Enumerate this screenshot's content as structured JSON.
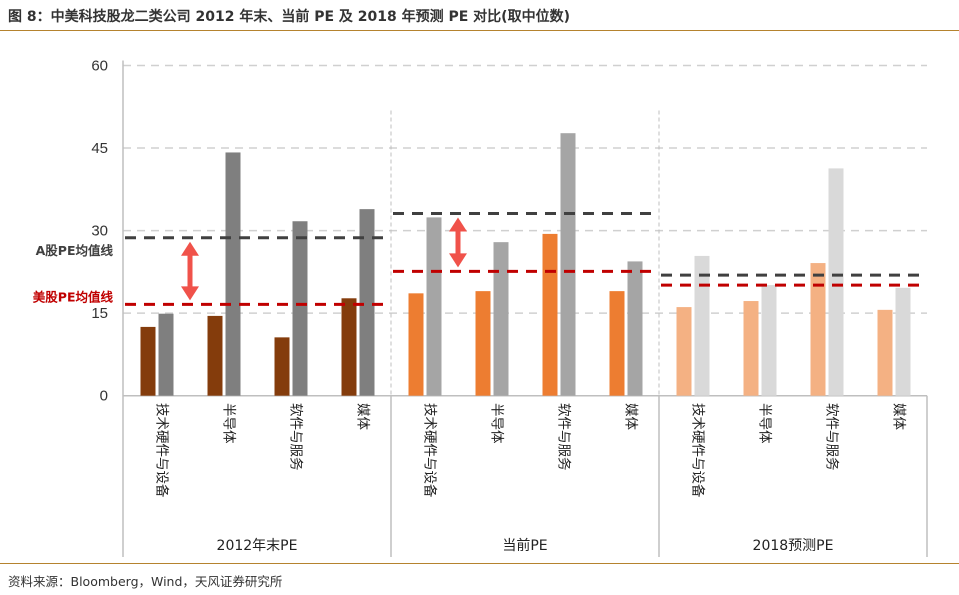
{
  "title": "图 8：中美科技股龙二类公司 2012 年末、当前 PE 及 2018 年预测 PE 对比(取中位数)",
  "source": "资料来源：Bloomberg，Wind，天风证券研究所",
  "chart_data": {
    "type": "bar",
    "ylim": [
      0,
      60
    ],
    "yticks": [
      "0",
      "15",
      "30",
      "45",
      "60"
    ],
    "grid": true,
    "groups": [
      {
        "label": "2012年末PE",
        "categories": [
          "技术硬件与设备",
          "半导体",
          "软件与服务",
          "媒体"
        ],
        "us_values": [
          12.5,
          14.5,
          10.6,
          17.7
        ],
        "a_values": [
          14.9,
          44.2,
          31.7,
          33.9
        ],
        "us_mean": 16.6,
        "a_mean": 28.7,
        "us_color": "#843c0c",
        "a_color": "#7f7f7f",
        "gap_arrow": true
      },
      {
        "label": "当前PE",
        "categories": [
          "技术硬件与设备",
          "半导体",
          "软件与服务",
          "媒体"
        ],
        "us_values": [
          18.6,
          19.0,
          29.4,
          19.0
        ],
        "a_values": [
          32.4,
          27.9,
          47.7,
          24.4
        ],
        "us_mean": 22.6,
        "a_mean": 33.1,
        "us_color": "#ed7d31",
        "a_color": "#a5a5a5",
        "gap_arrow": true
      },
      {
        "label": "2018预测PE",
        "categories": [
          "技术硬件与设备",
          "半导体",
          "软件与服务",
          "媒体"
        ],
        "us_values": [
          16.1,
          17.2,
          24.1,
          15.6
        ],
        "a_values": [
          25.4,
          20.1,
          41.3,
          19.6
        ],
        "us_mean": 20.1,
        "a_mean": 21.9,
        "us_color": "#f4b183",
        "a_color": "#d9d9d9",
        "gap_arrow": false
      }
    ],
    "annotations": {
      "a_mean_label": "A股PE均值线",
      "us_mean_label": "美股PE均值线",
      "a_line_color": "#404040",
      "us_line_color": "#c00000",
      "arrow_color": "#f0524a"
    }
  }
}
